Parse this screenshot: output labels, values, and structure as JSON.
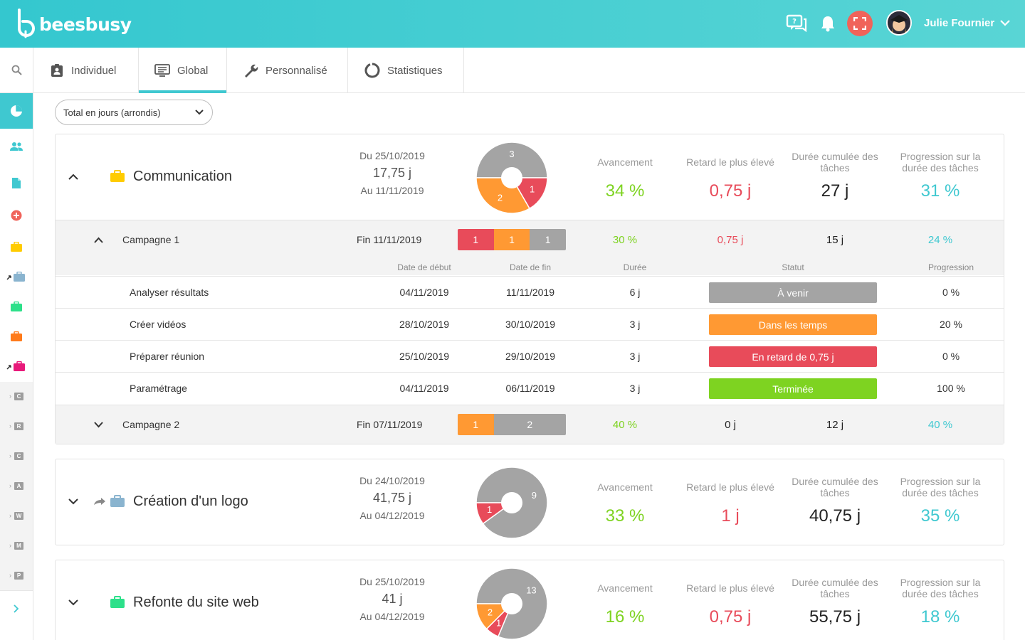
{
  "app": {
    "brand": "beesbusy",
    "user_name": "Julie Fournier",
    "colors": {
      "accent": "#3fc8d0",
      "green": "#7ed321",
      "red": "#e84b5a",
      "orange": "#ff9933",
      "grey": "#a4a4a4"
    }
  },
  "header": {
    "icons": [
      "support-chat-icon",
      "bell-icon",
      "fullscreen-icon",
      "avatar",
      "chevron-down-icon"
    ]
  },
  "sidebar": {
    "letters": [
      "C",
      "R",
      "C",
      "A",
      "W",
      "M",
      "P"
    ]
  },
  "tabs": [
    {
      "label": "Individuel",
      "icon": "badge-icon"
    },
    {
      "label": "Global",
      "icon": "screen-icon",
      "active": true
    },
    {
      "label": "Personnalisé",
      "icon": "wrench-icon"
    },
    {
      "label": "Statistiques",
      "icon": "stats-ring-icon"
    }
  ],
  "filter": {
    "selected": "Total en jours (arrondis)"
  },
  "stat_labels": {
    "avancement": "Avancement",
    "retard": "Retard le plus élevé",
    "duree": "Durée cumulée des tâches",
    "progression": "Progression sur la durée des tâches"
  },
  "table_headers": {
    "start": "Date de début",
    "end": "Date de fin",
    "duration": "Durée",
    "status": "Statut",
    "progress": "Progression"
  },
  "projects": [
    {
      "name": "Communication",
      "color": "#ffcc00",
      "start": "Du 25/10/2019",
      "total": "17,75 j",
      "end": "Au 11/11/2019",
      "pie": [
        {
          "value": 3,
          "color": "#a4a4a4"
        },
        {
          "value": 1,
          "color": "#e84b5a"
        },
        {
          "value": 2,
          "color": "#ff9933"
        }
      ],
      "avancement": "34 %",
      "retard": "0,75 j",
      "duree": "27 j",
      "progression": "31 %",
      "campaigns": [
        {
          "name": "Campagne 1",
          "end": "Fin 11/11/2019",
          "bar": [
            {
              "value": 1,
              "color": "#e84b5a"
            },
            {
              "value": 1,
              "color": "#ff9933"
            },
            {
              "value": 1,
              "color": "#a4a4a4"
            }
          ],
          "avancement": "30 %",
          "retard": "0,75 j",
          "duree": "15 j",
          "progression": "24 %",
          "tasks": [
            {
              "name": "Analyser résultats",
              "start": "04/11/2019",
              "end": "11/11/2019",
              "duration": "6 j",
              "status": "À venir",
              "status_color": "#a4a4a4",
              "progress": "0 %"
            },
            {
              "name": "Créer vidéos",
              "start": "28/10/2019",
              "end": "30/10/2019",
              "duration": "3 j",
              "status": "Dans les temps",
              "status_color": "#ff9933",
              "progress": "20 %"
            },
            {
              "name": "Préparer réunion",
              "start": "25/10/2019",
              "end": "29/10/2019",
              "duration": "3 j",
              "status": "En retard de 0,75 j",
              "status_color": "#e84b5a",
              "progress": "0 %"
            },
            {
              "name": "Paramétrage",
              "start": "04/11/2019",
              "end": "06/11/2019",
              "duration": "3 j",
              "status": "Terminée",
              "status_color": "#7ed321",
              "progress": "100 %"
            }
          ]
        },
        {
          "name": "Campagne 2",
          "end": "Fin 07/11/2019",
          "bar": [
            {
              "value": 1,
              "color": "#ff9933"
            },
            {
              "value": 2,
              "color": "#a4a4a4"
            }
          ],
          "avancement": "40 %",
          "retard": "0 j",
          "duree": "12 j",
          "progression": "40 %"
        }
      ]
    },
    {
      "name": "Création d'un logo",
      "color": "#8ab4cf",
      "start": "Du 24/10/2019",
      "total": "41,75 j",
      "end": "Au 04/12/2019",
      "pie": [
        {
          "value": 9,
          "color": "#a4a4a4"
        },
        {
          "value": 1,
          "color": "#e84b5a"
        }
      ],
      "avancement": "33 %",
      "retard": "1 j",
      "duree": "40,75 j",
      "progression": "35 %"
    },
    {
      "name": "Refonte du site web",
      "color": "#2de08a",
      "start": "Du 25/10/2019",
      "total": "41 j",
      "end": "Au 04/12/2019",
      "pie": [
        {
          "value": 13,
          "color": "#a4a4a4"
        },
        {
          "value": 1,
          "color": "#e84b5a"
        },
        {
          "value": 2,
          "color": "#ff9933"
        }
      ],
      "avancement": "16 %",
      "retard": "0,75 j",
      "duree": "55,75 j",
      "progression": "18 %"
    }
  ]
}
